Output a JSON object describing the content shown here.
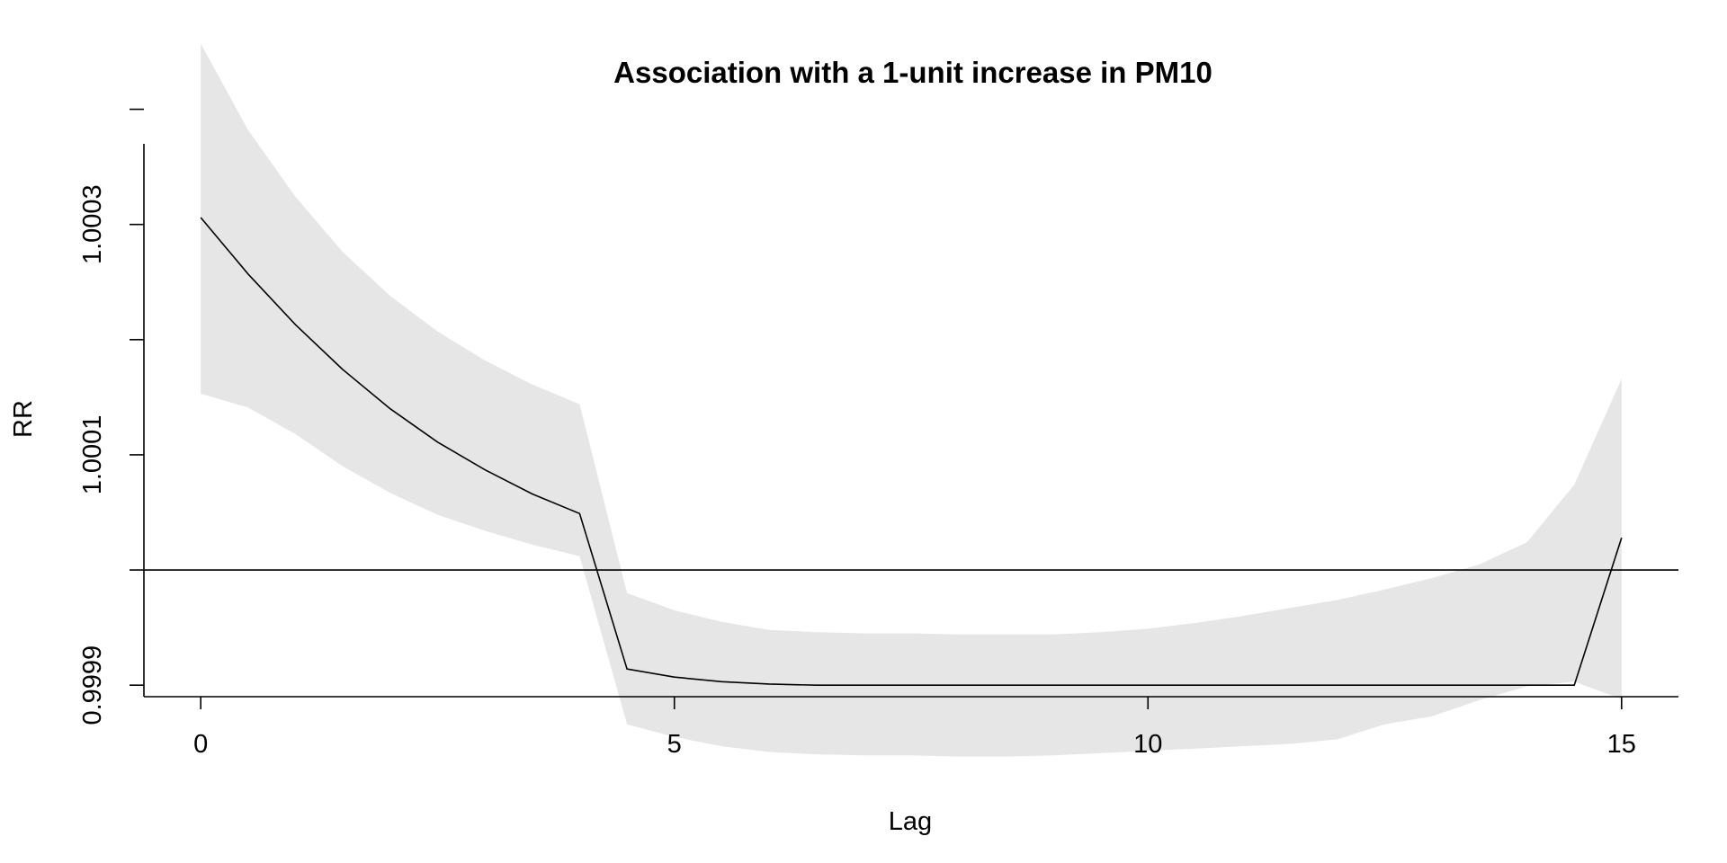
{
  "chart_data": {
    "type": "line",
    "title": "Association with a 1-unit increase in PM10",
    "xlabel": "Lag",
    "ylabel": "RR",
    "xlim": [
      -0.6,
      15.6
    ],
    "ylim": [
      0.99989,
      1.00037
    ],
    "xticks": [
      0,
      5,
      10,
      15
    ],
    "xtick_labels": [
      "0",
      "5",
      "10",
      "15"
    ],
    "yticks": [
      0.9999,
      1.0,
      1.0001,
      1.0002,
      1.0003,
      1.0004
    ],
    "ytick_labels": [
      "0.9999",
      "",
      "1.0001",
      "",
      "1.0003",
      ""
    ],
    "reference_line": 1.0,
    "grid": false,
    "colors": {
      "line": "#000000",
      "band": "#e6e6e6",
      "reference": "#000000"
    },
    "x": [
      0,
      0.5,
      1,
      1.5,
      2,
      2.5,
      3,
      3.5,
      4,
      4.5,
      5,
      5.5,
      6,
      6.5,
      7,
      7.5,
      8,
      8.5,
      9,
      9.5,
      10,
      10.5,
      11,
      11.5,
      12,
      12.5,
      13,
      13.5,
      14,
      14.5,
      15
    ],
    "series": [
      {
        "values": [
          1.000306,
          1.000257,
          1.000213,
          1.000174,
          1.00014,
          1.000111,
          1.000087,
          1.000066,
          1.000049,
          0.999914,
          0.999907,
          0.999903,
          0.999901,
          0.9999,
          0.9999,
          0.9999,
          0.9999,
          0.9999,
          0.9999,
          0.9999,
          0.9999,
          0.9999,
          0.9999,
          0.9999,
          0.9999,
          0.9999,
          0.9999,
          0.9999,
          0.9999,
          0.9999,
          1.000028
        ]
      }
    ],
    "band": {
      "upper": [
        1.000457,
        1.000382,
        1.000324,
        1.000276,
        1.000238,
        1.000207,
        1.000182,
        1.000161,
        1.000144,
        0.99998,
        0.999965,
        0.999955,
        0.999948,
        0.999946,
        0.999945,
        0.999945,
        0.999944,
        0.999944,
        0.999944,
        0.999946,
        0.999949,
        0.999954,
        0.99996,
        0.999967,
        0.999974,
        0.999983,
        0.999993,
        1.000005,
        1.000024,
        1.000074,
        1.000166
      ],
      "lower": [
        1.000153,
        1.000141,
        1.000118,
        1.00009,
        1.000067,
        1.000048,
        1.000034,
        1.000022,
        1.000012,
        0.999866,
        0.999855,
        0.999847,
        0.999842,
        0.99984,
        0.999839,
        0.999839,
        0.999838,
        0.999838,
        0.999839,
        0.999841,
        0.999843,
        0.999845,
        0.999847,
        0.999849,
        0.999853,
        0.999866,
        0.999873,
        0.999887,
        0.999899,
        0.999903,
        0.999888
      ]
    }
  }
}
